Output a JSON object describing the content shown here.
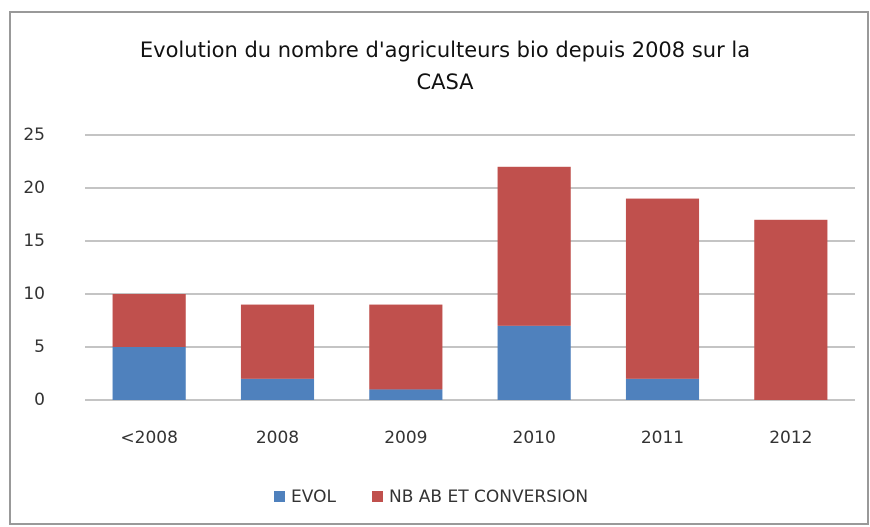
{
  "chart_data": {
    "type": "stacked_bar",
    "title": "Evolution du nombre d'agriculteurs bio depuis 2008 sur la CASA",
    "categories": [
      "<2008",
      "2008",
      "2009",
      "2010",
      "2011",
      "2012"
    ],
    "series": [
      {
        "name": "EVOL",
        "color": "#4f81bd",
        "values": [
          5,
          2,
          1,
          7,
          2,
          0
        ]
      },
      {
        "name": "NB AB ET CONVERSION",
        "color": "#c0504d",
        "values": [
          5,
          7,
          8,
          15,
          17,
          17
        ]
      }
    ],
    "ylim": [
      0,
      25
    ],
    "yticks": [
      0,
      5,
      10,
      15,
      20,
      25
    ],
    "grid": true,
    "legend": "bottom"
  }
}
